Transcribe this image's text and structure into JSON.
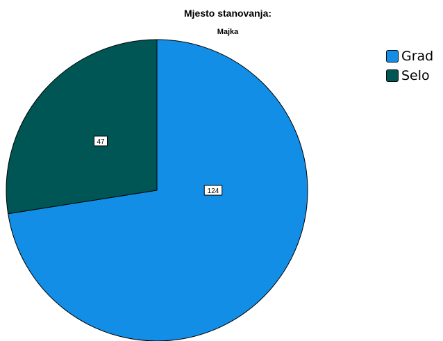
{
  "chart_data": {
    "type": "pie",
    "title": "Mjesto stanovanja:",
    "subtitle": "Majka",
    "categories": [
      "Grad",
      "Selo"
    ],
    "values": [
      124,
      47
    ],
    "colors": [
      "#128ee6",
      "#005555"
    ],
    "legend_position": "right"
  }
}
